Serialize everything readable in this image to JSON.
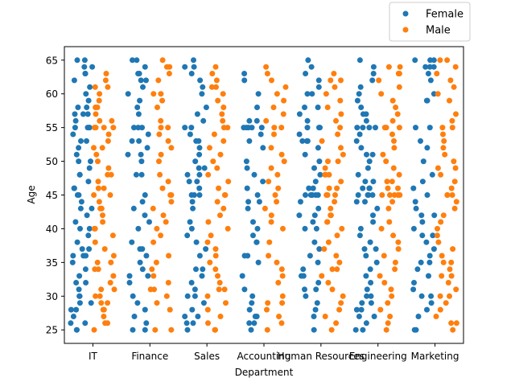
{
  "chart_data": {
    "type": "scatter",
    "subtype": "strip",
    "xlabel": "Department",
    "ylabel": "Age",
    "categories": [
      "IT",
      "Finance",
      "Sales",
      "Accounting",
      "Human Resources",
      "Engineering",
      "Marketing"
    ],
    "ylim": [
      23,
      67
    ],
    "yticks": [
      25,
      30,
      35,
      40,
      45,
      50,
      55,
      60,
      65
    ],
    "grid": false,
    "legend": {
      "placement": "top-right",
      "entries": [
        "Female",
        "Male"
      ]
    },
    "series": [
      {
        "name": "Female",
        "color": "#1f77b4",
        "values": [
          [
            65,
            65,
            64,
            64,
            63,
            63,
            62,
            61,
            60,
            59,
            58,
            58,
            57,
            57,
            57,
            56,
            55,
            55,
            55,
            55,
            54,
            53,
            53,
            52,
            51,
            50,
            50,
            49,
            48,
            48,
            47,
            46,
            46,
            45,
            45,
            44,
            43,
            43,
            42,
            41,
            40,
            40,
            39,
            38,
            37,
            37,
            36,
            36,
            36,
            35,
            34,
            33,
            32,
            32,
            31,
            30,
            30,
            29,
            29,
            28,
            28,
            27,
            26,
            26,
            25,
            25
          ],
          [
            65,
            65,
            64,
            63,
            63,
            62,
            62,
            61,
            60,
            59,
            58,
            57,
            55,
            55,
            55,
            54,
            53,
            53,
            52,
            51,
            51,
            50,
            48,
            48,
            45,
            44,
            43,
            42,
            41,
            40,
            38,
            37,
            37,
            36,
            35,
            34,
            33,
            33,
            32,
            30,
            29,
            28,
            27,
            26,
            25,
            25
          ],
          [
            65,
            64,
            64,
            63,
            62,
            61,
            60,
            58,
            57,
            56,
            55,
            55,
            54,
            53,
            53,
            52,
            51,
            50,
            49,
            49,
            48,
            48,
            47,
            47,
            46,
            45,
            45,
            45,
            44,
            43,
            41,
            40,
            39,
            38,
            37,
            36,
            34,
            34,
            33,
            32,
            31,
            30,
            30,
            29,
            28,
            27,
            27,
            26,
            26,
            25
          ],
          [
            63,
            62,
            60,
            58,
            56,
            56,
            55,
            55,
            55,
            55,
            55,
            54,
            53,
            52,
            50,
            49,
            48,
            47,
            46,
            45,
            44,
            44,
            43,
            41,
            40,
            39,
            38,
            38,
            36,
            36,
            35,
            33,
            31,
            30,
            29,
            28,
            27,
            27,
            26,
            26,
            25
          ],
          [
            65,
            64,
            63,
            62,
            61,
            60,
            60,
            58,
            58,
            57,
            56,
            55,
            55,
            55,
            54,
            53,
            53,
            53,
            52,
            51,
            50,
            49,
            48,
            47,
            46,
            46,
            45,
            45,
            45,
            45,
            45,
            45,
            44,
            43,
            42,
            42,
            41,
            40,
            40,
            38,
            37,
            36,
            35,
            34,
            33,
            33,
            32,
            31,
            31,
            30,
            29,
            28,
            27,
            25
          ],
          [
            65,
            64,
            63,
            62,
            61,
            60,
            59,
            58,
            57,
            57,
            56,
            55,
            55,
            55,
            55,
            54,
            53,
            52,
            51,
            51,
            50,
            49,
            48,
            47,
            47,
            46,
            46,
            46,
            45,
            45,
            45,
            45,
            44,
            44,
            43,
            42,
            41,
            40,
            39,
            38,
            37,
            37,
            36,
            35,
            34,
            33,
            32,
            31,
            30,
            30,
            29,
            29,
            28,
            28,
            27,
            27,
            26,
            25,
            25
          ],
          [
            65,
            65,
            65,
            64,
            64,
            64,
            63,
            62,
            60,
            59,
            59,
            55,
            55,
            53,
            52,
            50,
            48,
            47,
            46,
            45,
            44,
            43,
            42,
            42,
            41,
            40,
            39,
            39,
            38,
            37,
            36,
            35,
            35,
            34,
            33,
            32,
            31,
            30,
            30,
            29,
            28,
            27,
            25,
            25
          ]
        ]
      },
      {
        "name": "Male",
        "color": "#ff7f0e",
        "values": [
          [
            63,
            62,
            61,
            61,
            60,
            59,
            58,
            58,
            57,
            56,
            56,
            55,
            55,
            55,
            55,
            54,
            53,
            52,
            52,
            51,
            50,
            49,
            48,
            48,
            47,
            46,
            46,
            45,
            45,
            44,
            43,
            43,
            42,
            41,
            40,
            40,
            39,
            38,
            37,
            36,
            35,
            35,
            34,
            34,
            33,
            32,
            31,
            31,
            30,
            30,
            29,
            29,
            28,
            28,
            27,
            26,
            26,
            25
          ],
          [
            65,
            64,
            64,
            63,
            62,
            60,
            60,
            59,
            58,
            56,
            55,
            55,
            54,
            53,
            52,
            51,
            50,
            48,
            47,
            46,
            45,
            45,
            44,
            43,
            42,
            41,
            40,
            39,
            38,
            36,
            35,
            34,
            33,
            32,
            31,
            31,
            30,
            29,
            28,
            25,
            25
          ],
          [
            64,
            63,
            62,
            61,
            61,
            60,
            59,
            58,
            57,
            56,
            55,
            55,
            54,
            53,
            52,
            51,
            50,
            49,
            48,
            47,
            46,
            45,
            45,
            44,
            43,
            42,
            41,
            40,
            39,
            38,
            37,
            36,
            35,
            34,
            33,
            32,
            31,
            31,
            30,
            29,
            28,
            27,
            26,
            25,
            25
          ],
          [
            64,
            63,
            62,
            61,
            60,
            59,
            58,
            57,
            56,
            55,
            55,
            54,
            52,
            51,
            50,
            49,
            48,
            47,
            46,
            45,
            44,
            43,
            42,
            41,
            40,
            38,
            36,
            35,
            34,
            33,
            32,
            30,
            29,
            29,
            28,
            27,
            26,
            25
          ],
          [
            63,
            62,
            62,
            61,
            60,
            59,
            58,
            57,
            56,
            55,
            54,
            53,
            52,
            51,
            50,
            50,
            49,
            48,
            48,
            48,
            47,
            46,
            46,
            45,
            45,
            45,
            44,
            43,
            42,
            42,
            41,
            41,
            40,
            39,
            38,
            37,
            36,
            35,
            34,
            34,
            33,
            32,
            31,
            30,
            29,
            28,
            27,
            26,
            25
          ],
          [
            64,
            64,
            63,
            63,
            62,
            61,
            60,
            59,
            58,
            57,
            56,
            55,
            55,
            55,
            54,
            53,
            52,
            51,
            50,
            49,
            48,
            47,
            47,
            46,
            46,
            45,
            45,
            45,
            45,
            45,
            44,
            43,
            41,
            40,
            39,
            38,
            37,
            36,
            35,
            34,
            33,
            32,
            31,
            30,
            29,
            28,
            27,
            26,
            25
          ],
          [
            65,
            65,
            64,
            63,
            62,
            61,
            60,
            59,
            57,
            56,
            55,
            55,
            54,
            53,
            52,
            51,
            50,
            49,
            49,
            48,
            47,
            46,
            45,
            45,
            45,
            44,
            43,
            42,
            41,
            40,
            39,
            38,
            37,
            36,
            35,
            35,
            34,
            33,
            33,
            32,
            31,
            30,
            30,
            29,
            28,
            27,
            26,
            26,
            25
          ]
        ]
      }
    ]
  }
}
